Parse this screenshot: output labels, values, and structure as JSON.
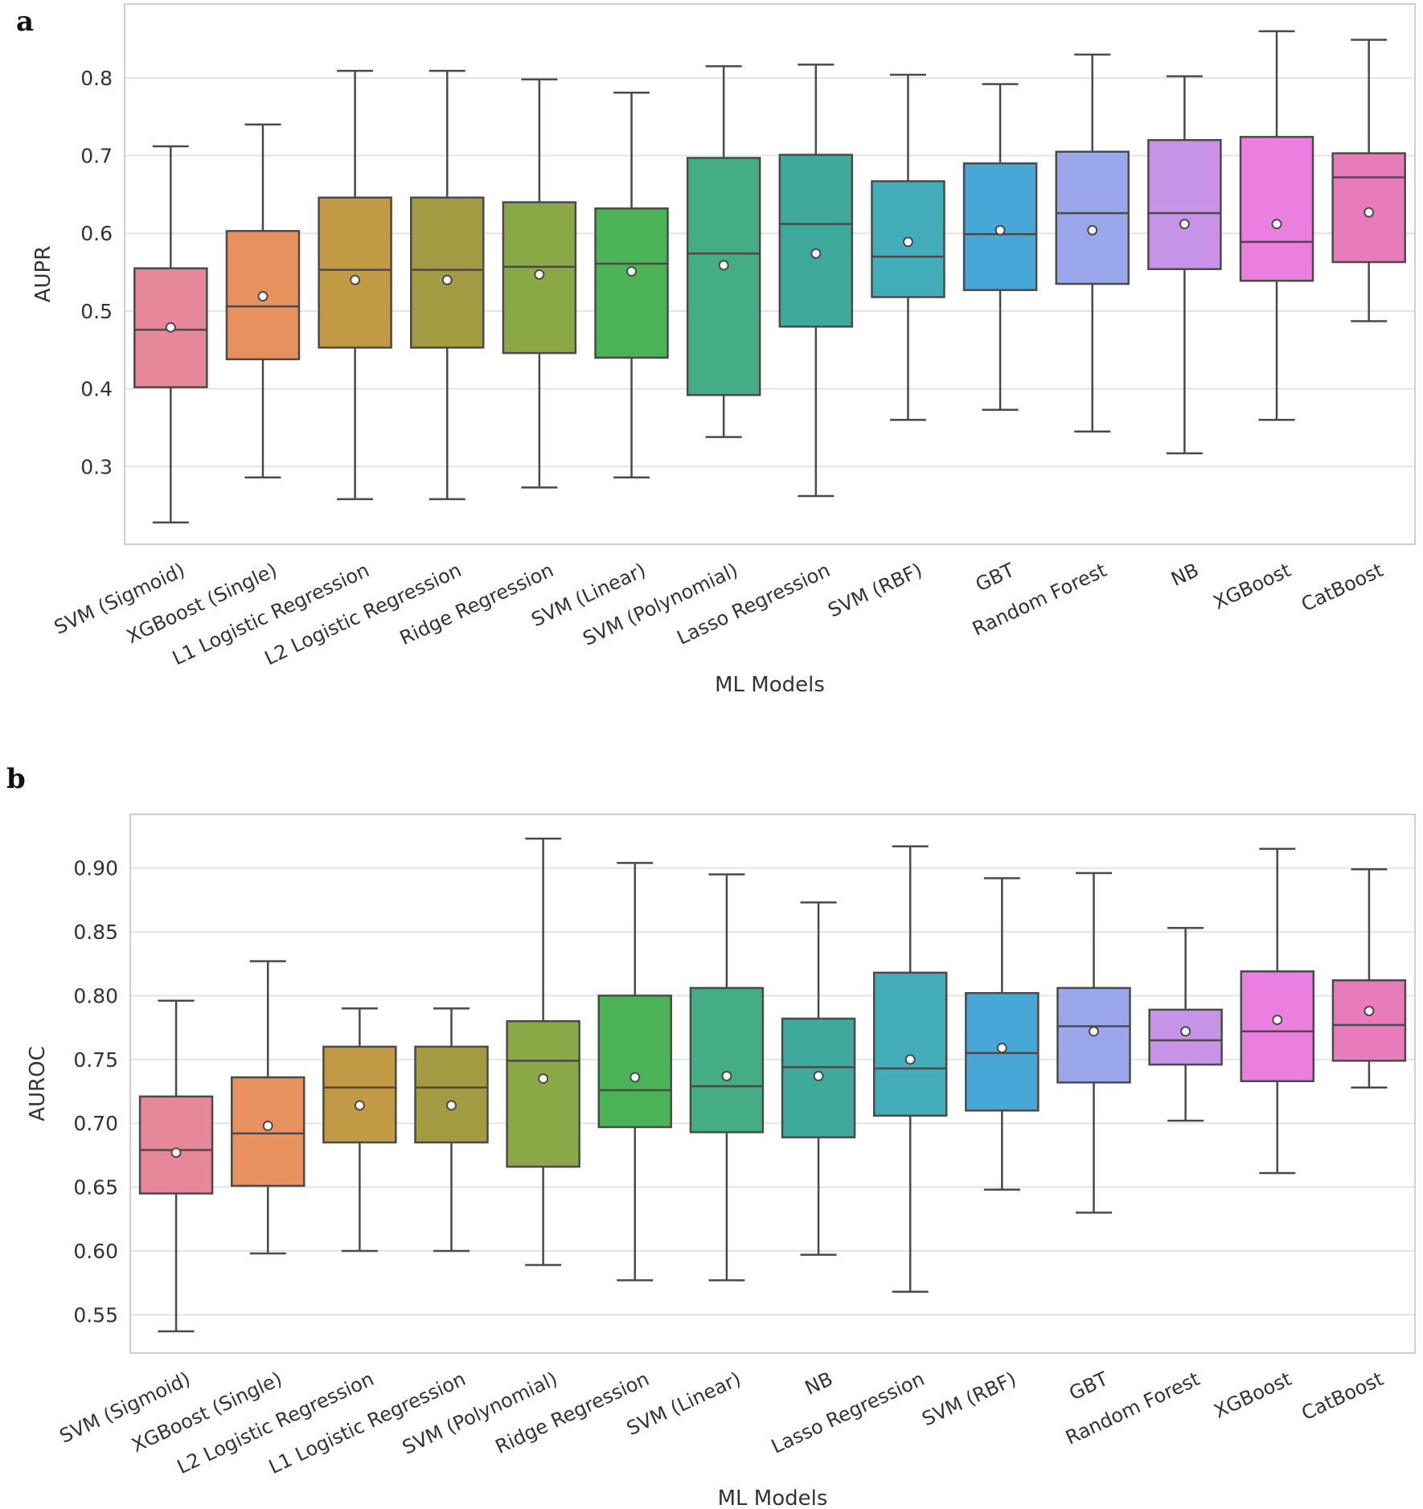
{
  "chart_data": [
    {
      "type": "box",
      "panel_label": "a",
      "xlabel": "ML Models",
      "ylabel": "AUPR",
      "ylim": [
        0.2,
        0.895
      ],
      "yticks": [
        0.3,
        0.4,
        0.5,
        0.6,
        0.7,
        0.8
      ],
      "ytick_labels": [
        "0.3",
        "0.4",
        "0.5",
        "0.6",
        "0.7",
        "0.8"
      ],
      "categories": [
        "SVM (Sigmoid)",
        "XGBoost (Single)",
        "L1 Logistic Regression",
        "L2 Logistic Regression",
        "Ridge Regression",
        "SVM (Linear)",
        "SVM (Polynomial)",
        "Lasso Regression",
        "SVM (RBF)",
        "GBT",
        "Random Forest",
        "NB",
        "XGBoost",
        "CatBoost"
      ],
      "colors": [
        "#E7879A",
        "#E8915F",
        "#C29A45",
        "#A29B42",
        "#8BA846",
        "#4CB256",
        "#44AD85",
        "#3FAA9C",
        "#42ACB8",
        "#47A8D8",
        "#9AA7EB",
        "#C693E6",
        "#EA7FE0",
        "#E87BB9"
      ],
      "boxes": [
        {
          "whislo": 0.228,
          "q1": 0.402,
          "med": 0.476,
          "q3": 0.555,
          "whishi": 0.712,
          "mean": 0.479
        },
        {
          "whislo": 0.286,
          "q1": 0.438,
          "med": 0.506,
          "q3": 0.603,
          "whishi": 0.74,
          "mean": 0.519
        },
        {
          "whislo": 0.258,
          "q1": 0.453,
          "med": 0.553,
          "q3": 0.646,
          "whishi": 0.809,
          "mean": 0.54
        },
        {
          "whislo": 0.258,
          "q1": 0.453,
          "med": 0.553,
          "q3": 0.646,
          "whishi": 0.809,
          "mean": 0.54
        },
        {
          "whislo": 0.273,
          "q1": 0.446,
          "med": 0.557,
          "q3": 0.64,
          "whishi": 0.798,
          "mean": 0.547
        },
        {
          "whislo": 0.286,
          "q1": 0.44,
          "med": 0.561,
          "q3": 0.632,
          "whishi": 0.781,
          "mean": 0.551
        },
        {
          "whislo": 0.338,
          "q1": 0.392,
          "med": 0.574,
          "q3": 0.697,
          "whishi": 0.815,
          "mean": 0.559
        },
        {
          "whislo": 0.262,
          "q1": 0.48,
          "med": 0.612,
          "q3": 0.701,
          "whishi": 0.817,
          "mean": 0.574
        },
        {
          "whislo": 0.36,
          "q1": 0.518,
          "med": 0.57,
          "q3": 0.667,
          "whishi": 0.804,
          "mean": 0.589
        },
        {
          "whislo": 0.373,
          "q1": 0.527,
          "med": 0.599,
          "q3": 0.69,
          "whishi": 0.792,
          "mean": 0.604
        },
        {
          "whislo": 0.345,
          "q1": 0.535,
          "med": 0.626,
          "q3": 0.705,
          "whishi": 0.83,
          "mean": 0.604
        },
        {
          "whislo": 0.317,
          "q1": 0.554,
          "med": 0.626,
          "q3": 0.72,
          "whishi": 0.802,
          "mean": 0.612
        },
        {
          "whislo": 0.36,
          "q1": 0.539,
          "med": 0.589,
          "q3": 0.724,
          "whishi": 0.86,
          "mean": 0.612
        },
        {
          "whislo": 0.487,
          "q1": 0.563,
          "med": 0.672,
          "q3": 0.703,
          "whishi": 0.849,
          "mean": 0.627
        }
      ]
    },
    {
      "type": "box",
      "panel_label": "b",
      "xlabel": "ML Models",
      "ylabel": "AUROC",
      "ylim": [
        0.52,
        0.942
      ],
      "yticks": [
        0.55,
        0.6,
        0.65,
        0.7,
        0.75,
        0.8,
        0.85,
        0.9
      ],
      "ytick_labels": [
        "0.55",
        "0.60",
        "0.65",
        "0.70",
        "0.75",
        "0.80",
        "0.85",
        "0.90"
      ],
      "categories": [
        "SVM (Sigmoid)",
        "XGBoost (Single)",
        "L2 Logistic Regression",
        "L1 Logistic Regression",
        "SVM (Polynomial)",
        "Ridge Regression",
        "SVM (Linear)",
        "NB",
        "Lasso Regression",
        "SVM (RBF)",
        "GBT",
        "Random Forest",
        "XGBoost",
        "CatBoost"
      ],
      "colors": [
        "#E7879A",
        "#E8915F",
        "#C29A45",
        "#A29B42",
        "#8BA846",
        "#4CB256",
        "#44AD85",
        "#3FAA9C",
        "#42ACB8",
        "#47A8D8",
        "#9AA7EB",
        "#C693E6",
        "#EA7FE0",
        "#E87BB9"
      ],
      "boxes": [
        {
          "whislo": 0.537,
          "q1": 0.645,
          "med": 0.679,
          "q3": 0.721,
          "whishi": 0.796,
          "mean": 0.677
        },
        {
          "whislo": 0.598,
          "q1": 0.651,
          "med": 0.692,
          "q3": 0.736,
          "whishi": 0.827,
          "mean": 0.698
        },
        {
          "whislo": 0.6,
          "q1": 0.685,
          "med": 0.728,
          "q3": 0.76,
          "whishi": 0.79,
          "mean": 0.714
        },
        {
          "whislo": 0.6,
          "q1": 0.685,
          "med": 0.728,
          "q3": 0.76,
          "whishi": 0.79,
          "mean": 0.714
        },
        {
          "whislo": 0.589,
          "q1": 0.666,
          "med": 0.749,
          "q3": 0.78,
          "whishi": 0.923,
          "mean": 0.735
        },
        {
          "whislo": 0.577,
          "q1": 0.697,
          "med": 0.726,
          "q3": 0.8,
          "whishi": 0.904,
          "mean": 0.736
        },
        {
          "whislo": 0.577,
          "q1": 0.693,
          "med": 0.729,
          "q3": 0.806,
          "whishi": 0.895,
          "mean": 0.737
        },
        {
          "whislo": 0.597,
          "q1": 0.689,
          "med": 0.744,
          "q3": 0.782,
          "whishi": 0.873,
          "mean": 0.737
        },
        {
          "whislo": 0.568,
          "q1": 0.706,
          "med": 0.743,
          "q3": 0.818,
          "whishi": 0.917,
          "mean": 0.75
        },
        {
          "whislo": 0.648,
          "q1": 0.71,
          "med": 0.755,
          "q3": 0.802,
          "whishi": 0.892,
          "mean": 0.759
        },
        {
          "whislo": 0.63,
          "q1": 0.732,
          "med": 0.776,
          "q3": 0.806,
          "whishi": 0.896,
          "mean": 0.772
        },
        {
          "whislo": 0.702,
          "q1": 0.746,
          "med": 0.765,
          "q3": 0.789,
          "whishi": 0.853,
          "mean": 0.772
        },
        {
          "whislo": 0.661,
          "q1": 0.733,
          "med": 0.772,
          "q3": 0.819,
          "whishi": 0.915,
          "mean": 0.781
        },
        {
          "whislo": 0.728,
          "q1": 0.749,
          "med": 0.777,
          "q3": 0.812,
          "whishi": 0.899,
          "mean": 0.788
        }
      ]
    }
  ]
}
